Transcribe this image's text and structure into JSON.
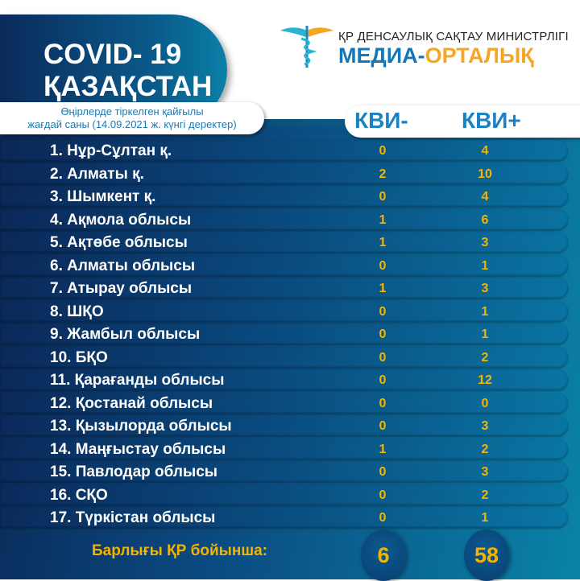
{
  "header": {
    "title_line1": "COVID- 19",
    "title_line2": "ҚАЗАҚСТАН",
    "ministry": "ҚР ДЕНСАУЛЫҚ САҚТАУ МИНИСТРЛІГІ",
    "media_part1": "МЕДИА-",
    "media_part2": "ОРТАЛЫҚ"
  },
  "subtitle": {
    "line1": "Өңірлерде тіркелген қайғылы",
    "line2": "жағдай саны (14.09.2021 ж. күнгі деректер)"
  },
  "columns": {
    "kvi_minus": "КВИ-",
    "kvi_plus": "КВИ+"
  },
  "rows": [
    {
      "name": "1. Нұр-Сұлтан қ.",
      "minus": "0",
      "plus": "4"
    },
    {
      "name": "2. Алматы қ.",
      "minus": "2",
      "plus": "10"
    },
    {
      "name": "3. Шымкент қ.",
      "minus": "0",
      "plus": "4"
    },
    {
      "name": "4. Ақмола облысы",
      "minus": "1",
      "plus": "6"
    },
    {
      "name": "5. Ақтөбе облысы",
      "minus": "1",
      "plus": "3"
    },
    {
      "name": "6. Алматы облысы",
      "minus": "0",
      "plus": "1"
    },
    {
      "name": "7. Атырау облысы",
      "minus": "1",
      "plus": "3"
    },
    {
      "name": "8. ШҚО",
      "minus": "0",
      "plus": "1"
    },
    {
      "name": "9. Жамбыл облысы",
      "minus": "0",
      "plus": "1"
    },
    {
      "name": "10. БҚО",
      "minus": "0",
      "plus": "2"
    },
    {
      "name": "11. Қарағанды облысы",
      "minus": "0",
      "plus": "12"
    },
    {
      "name": "12. Қостанай облысы",
      "minus": "0",
      "plus": "0"
    },
    {
      "name": "13. Қызылорда облысы",
      "minus": "0",
      "plus": "3"
    },
    {
      "name": "14. Маңғыстау облысы",
      "minus": "1",
      "plus": "2"
    },
    {
      "name": "15. Павлодар облысы",
      "minus": "0",
      "plus": "3"
    },
    {
      "name": "16. СҚО",
      "minus": "0",
      "plus": "2"
    },
    {
      "name": "17. Түркістан облысы",
      "minus": "0",
      "plus": "1"
    }
  ],
  "total": {
    "label": "Барлығы ҚР бойынша:",
    "minus": "6",
    "plus": "58"
  },
  "colors": {
    "accent": "#f5b400",
    "brand_blue": "#1478b8",
    "brand_orange": "#f5a623"
  }
}
